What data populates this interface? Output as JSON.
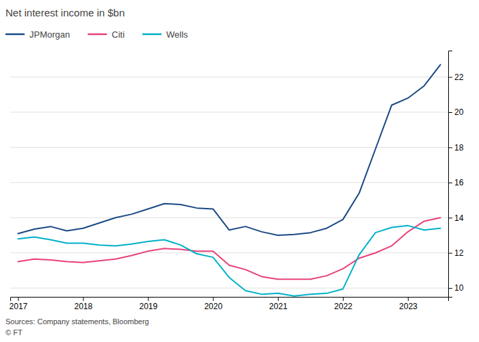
{
  "chart_data": {
    "type": "line",
    "title": "Net interest income in $bn",
    "annotations": [
      "Sources: Company statements, Bloomberg",
      "© FT"
    ],
    "x": [
      2017.0,
      2017.25,
      2017.5,
      2017.75,
      2018.0,
      2018.25,
      2018.5,
      2018.75,
      2019.0,
      2019.25,
      2019.5,
      2019.75,
      2020.0,
      2020.25,
      2020.5,
      2020.75,
      2021.0,
      2021.25,
      2021.5,
      2021.75,
      2022.0,
      2022.25,
      2022.5,
      2022.75,
      2023.0,
      2023.25,
      2023.5
    ],
    "series": [
      {
        "name": "JPMorgan",
        "color": "#1a4985",
        "values": [
          13.1,
          13.35,
          13.5,
          13.25,
          13.4,
          13.7,
          14.0,
          14.2,
          14.5,
          14.8,
          14.75,
          14.55,
          14.5,
          13.3,
          13.5,
          13.2,
          13.0,
          13.05,
          13.15,
          13.4,
          13.9,
          15.4,
          17.9,
          20.4,
          20.8,
          21.5,
          22.7
        ]
      },
      {
        "name": "Citi",
        "color": "#e8407a",
        "values": [
          11.5,
          11.65,
          11.6,
          11.5,
          11.45,
          11.55,
          11.65,
          11.85,
          12.1,
          12.25,
          12.2,
          12.1,
          12.1,
          11.3,
          11.05,
          10.65,
          10.5,
          10.5,
          10.5,
          10.7,
          11.1,
          11.7,
          12.0,
          12.4,
          13.2,
          13.8,
          14.0
        ]
      },
      {
        "name": "Wells",
        "color": "#00b0c8",
        "values": [
          12.8,
          12.9,
          12.75,
          12.55,
          12.55,
          12.45,
          12.4,
          12.5,
          12.65,
          12.75,
          12.45,
          11.95,
          11.75,
          10.6,
          9.85,
          9.65,
          9.7,
          9.55,
          9.65,
          9.7,
          9.95,
          11.9,
          13.15,
          13.45,
          13.55,
          13.3,
          13.4
        ]
      }
    ],
    "xlim": [
      2016.88,
      2023.62
    ],
    "xticks": [
      2017,
      2018,
      2019,
      2020,
      2021,
      2022,
      2023
    ],
    "ylim": [
      9.5,
      23.5
    ],
    "yticks": [
      10,
      12,
      14,
      16,
      18,
      20,
      22
    ],
    "grid": true,
    "legend": "top-left"
  }
}
